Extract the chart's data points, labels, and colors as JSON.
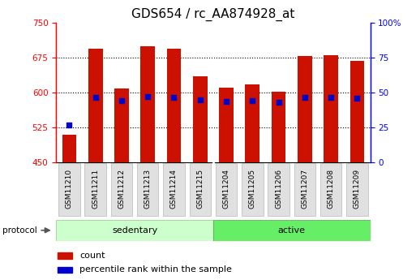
{
  "title": "GDS654 / rc_AA874928_at",
  "samples": [
    "GSM11210",
    "GSM11211",
    "GSM11212",
    "GSM11213",
    "GSM11214",
    "GSM11215",
    "GSM11204",
    "GSM11205",
    "GSM11206",
    "GSM11207",
    "GSM11208",
    "GSM11209"
  ],
  "bar_tops": [
    510,
    693,
    608,
    698,
    693,
    635,
    610,
    617,
    601,
    678,
    680,
    668
  ],
  "percentile_values": [
    530,
    590,
    582,
    591,
    589,
    584,
    580,
    582,
    578,
    589,
    589,
    588
  ],
  "y_min": 450,
  "y_max": 750,
  "y_ticks_left": [
    450,
    525,
    600,
    675,
    750
  ],
  "y_ticks_right": [
    0,
    25,
    50,
    75,
    100
  ],
  "bar_color": "#cc1100",
  "percentile_color": "#0000cc",
  "bar_width": 0.55,
  "n_sedentary": 6,
  "n_active": 6,
  "sedentary_color": "#ccffcc",
  "active_color": "#66ee66",
  "protocol_label": "protocol",
  "sedentary_label": "sedentary",
  "active_label": "active",
  "legend_count_label": "count",
  "legend_percentile_label": "percentile rank within the sample",
  "bg_color": "#ffffff",
  "title_fontsize": 11,
  "tick_fontsize": 7.5
}
